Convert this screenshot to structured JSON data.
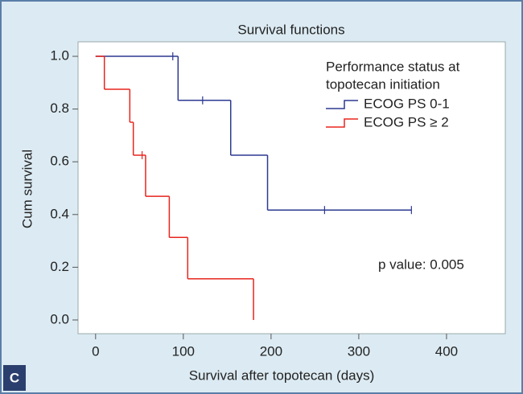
{
  "chart_data": {
    "type": "km",
    "title": "Survival functions",
    "x_label": "Survival after topotecan (days)",
    "y_label": "Cum survival",
    "panel_label": "C",
    "annotation": "p value: 0.005",
    "legend_title": [
      "Performance status at",
      "topotecan initiation"
    ],
    "xlim": [
      -20,
      467
    ],
    "ylim": [
      -0.052,
      1.055
    ],
    "xticks": [
      0,
      100,
      200,
      300,
      400
    ],
    "yticks": [
      {
        "value": 0,
        "label": "0.0"
      },
      0.2,
      0.4,
      0.6,
      0.8,
      {
        "value": 1,
        "label": "1.0"
      }
    ],
    "series": [
      {
        "name": "ECOG PS 0-1",
        "color": "#2b3990",
        "x": [
          0,
          94,
          154,
          196,
          360
        ],
        "values": [
          1,
          0.833,
          0.625,
          0.417,
          0.417
        ],
        "censored_x": [
          88,
          122,
          261,
          360
        ],
        "censored_values": [
          1,
          0.833,
          0.417,
          0.417
        ]
      },
      {
        "name": "ECOG PS ≥ 2",
        "color": "#e8251e",
        "x": [
          0,
          10,
          39,
          43,
          57,
          84,
          105,
          180
        ],
        "values": [
          1,
          0.875,
          0.75,
          0.625,
          0.469,
          0.313,
          0.156,
          0
        ],
        "censored_x": [
          53
        ],
        "censored_values": [
          0.625
        ]
      }
    ]
  }
}
